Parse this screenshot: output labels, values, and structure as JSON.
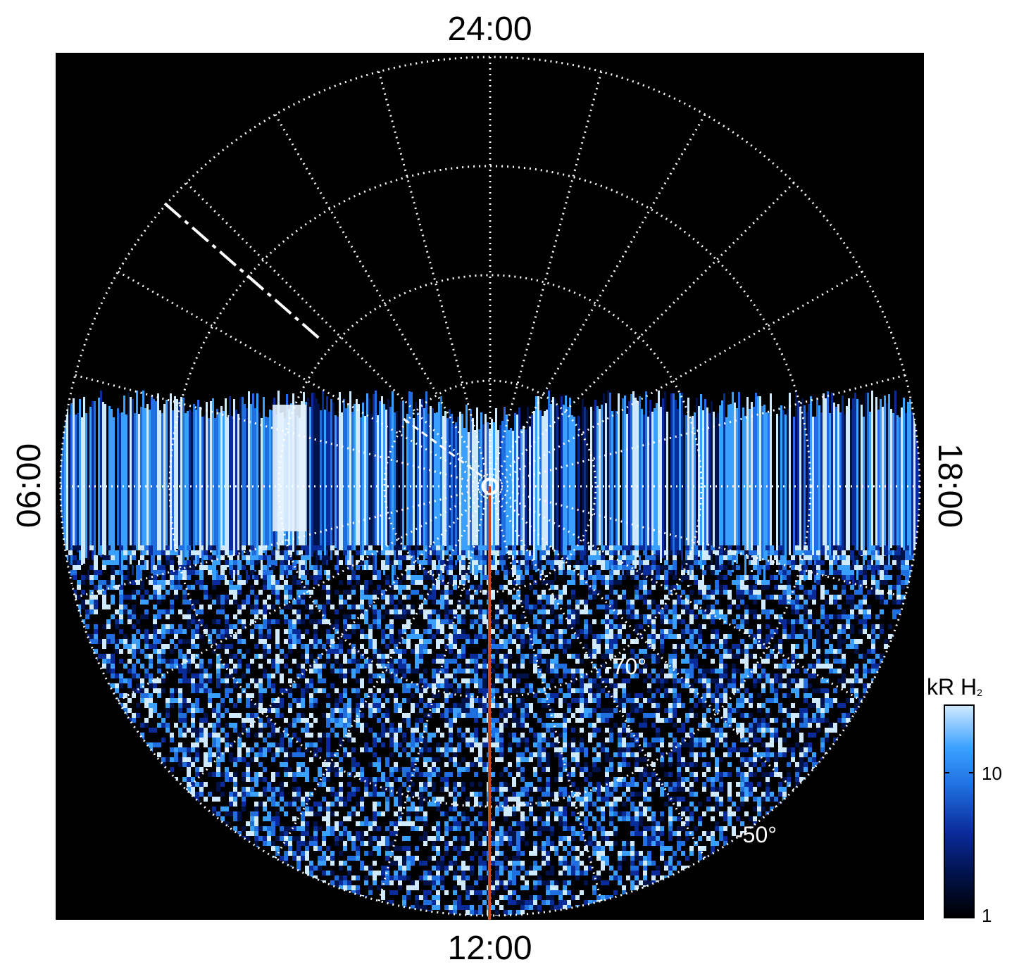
{
  "local_time_labels": {
    "top": "24:00",
    "bottom": "12:00",
    "left": "06:00",
    "right": "18:00"
  },
  "latitude_labels": {
    "inner": "-70°",
    "outer": "-50°"
  },
  "colorbar": {
    "title_main": "kR H",
    "title_sub": "2",
    "tick_labels": [
      "10",
      "1"
    ],
    "scale": "log",
    "colormap": [
      "#000000",
      "#00124a",
      "#0a2b9a",
      "#1f6fe0",
      "#3aa0ff",
      "#cfe9ff"
    ]
  },
  "colors": {
    "background": "#000000",
    "grid": "#ffffff",
    "meridian_line": "#d2461e"
  }
}
